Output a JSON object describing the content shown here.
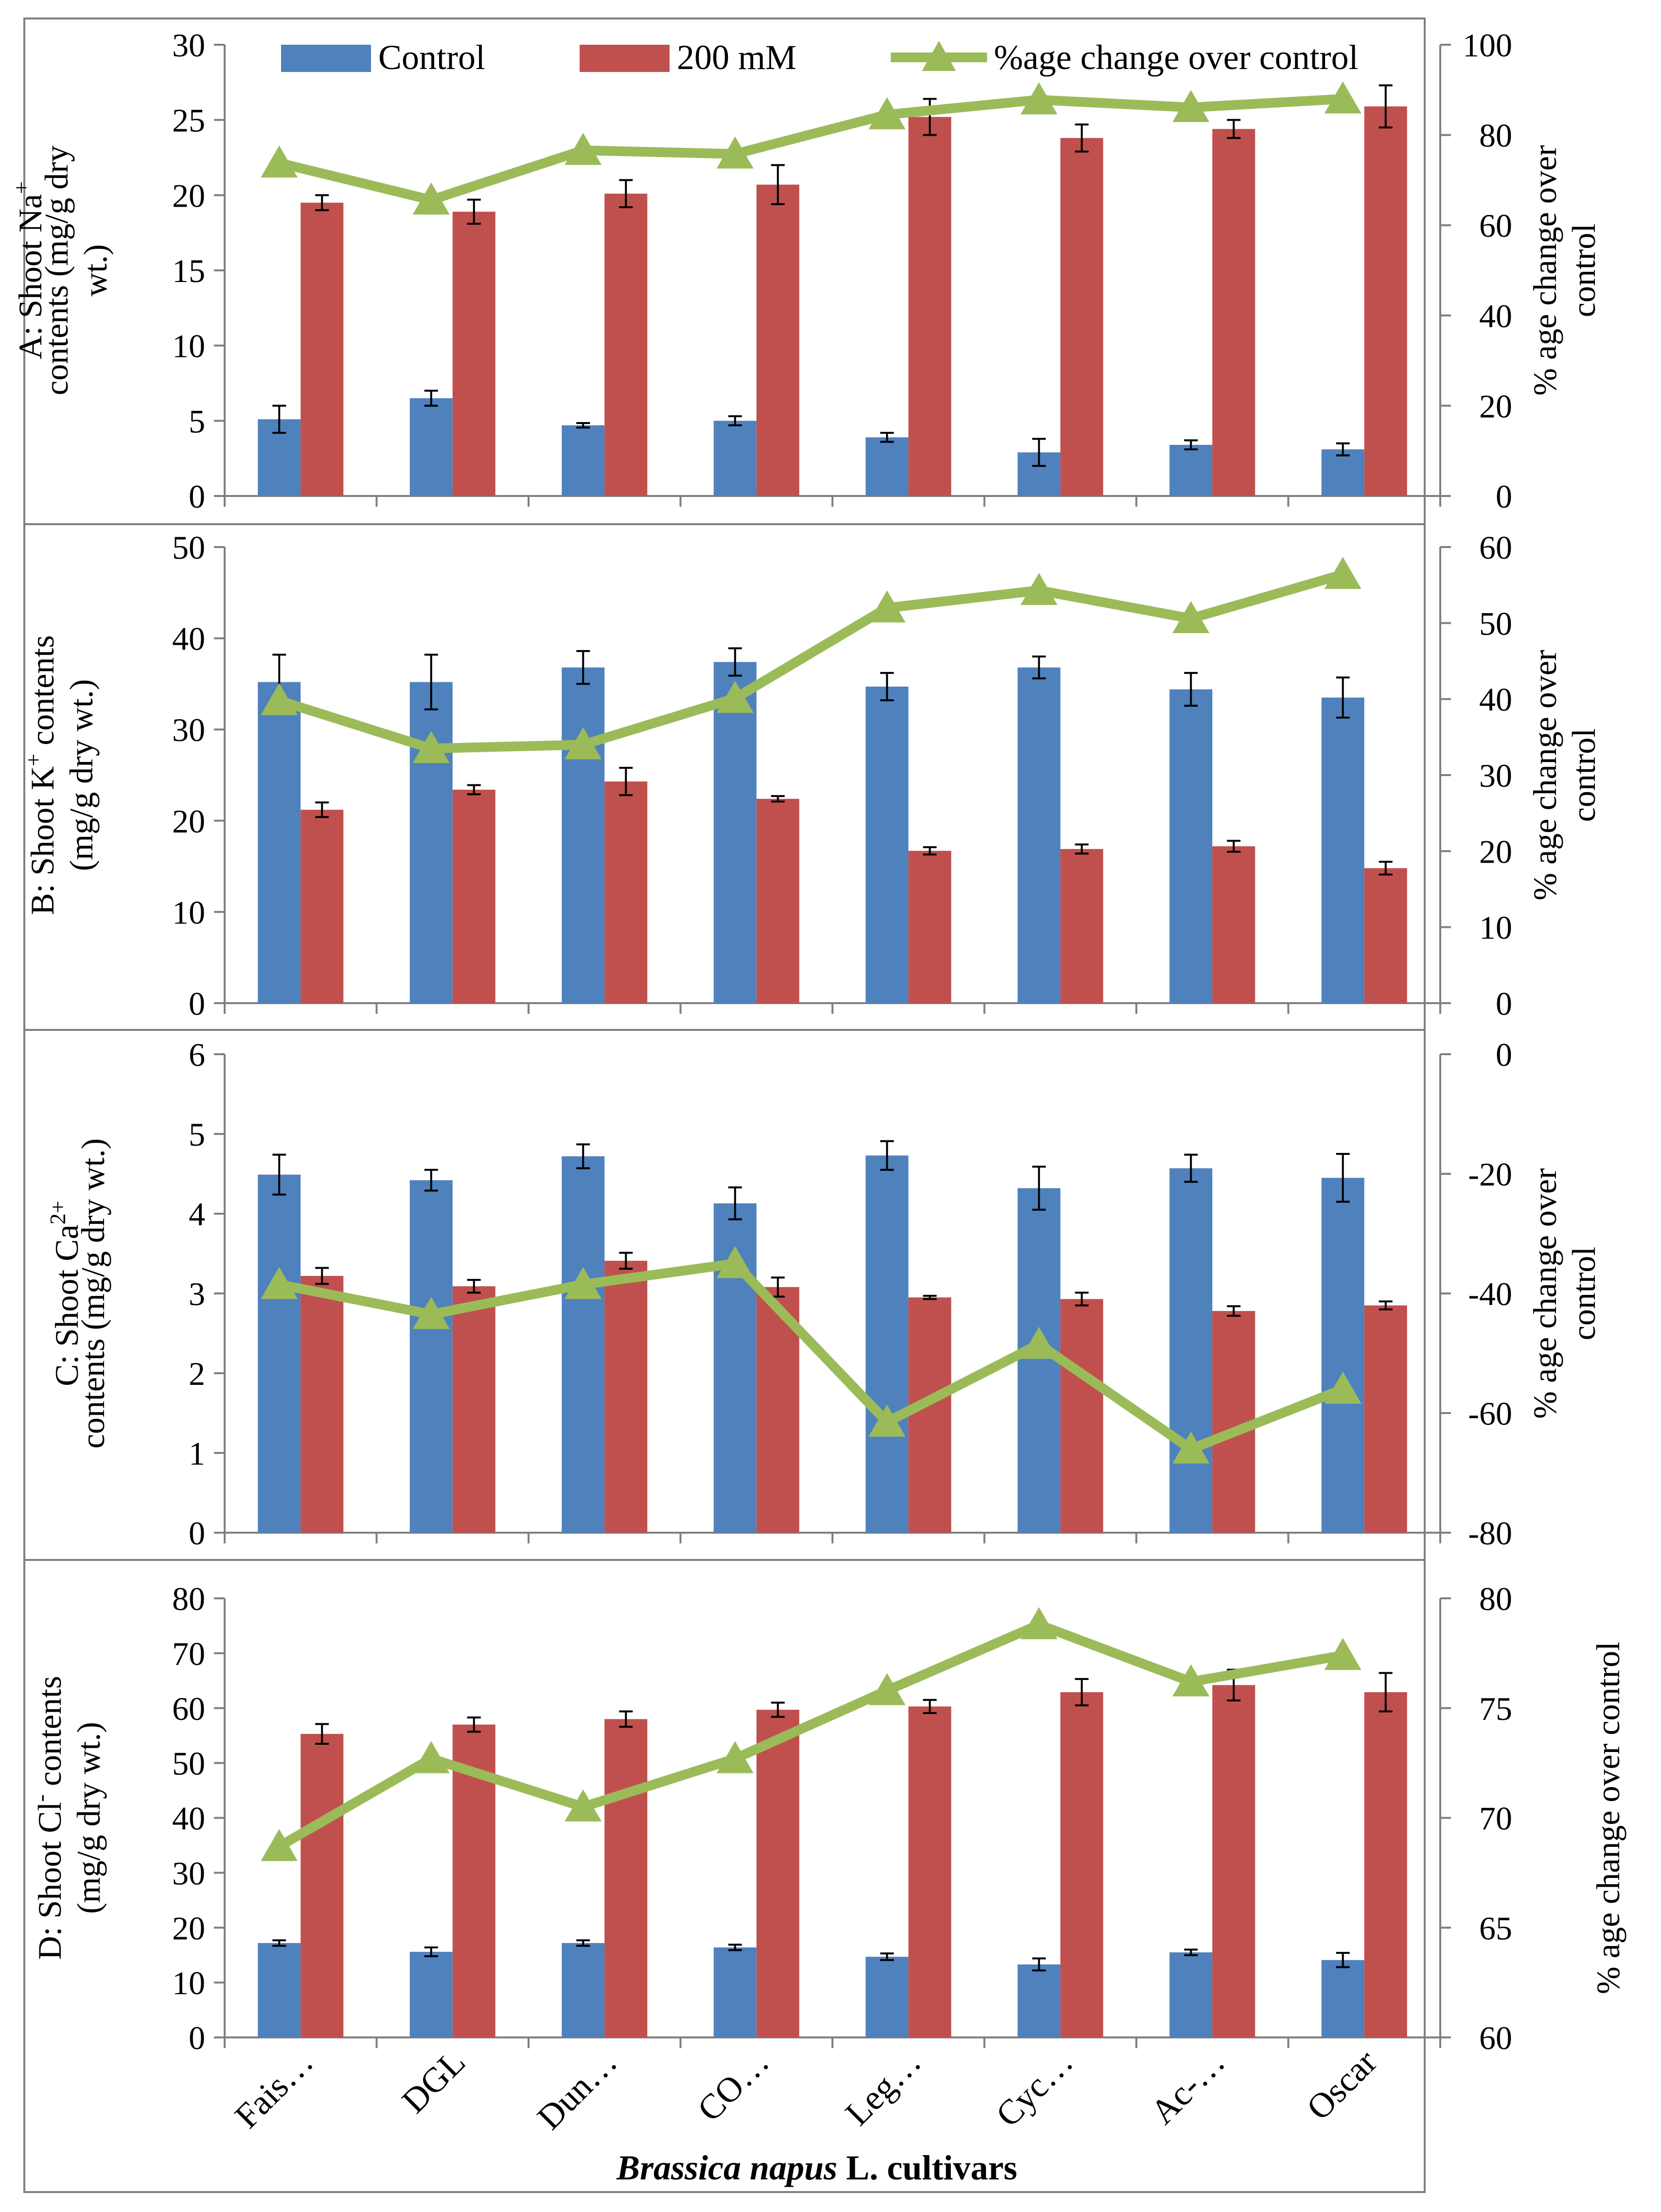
{
  "figure": {
    "legend": {
      "control": "Control",
      "salt": "200 mM",
      "change": "%age change over control"
    },
    "x_title_italic": "Brassica napus",
    "x_title_rest": " L. cultivars",
    "colors": {
      "control": "#4f81bd",
      "salt": "#c0504d",
      "change": "#9bbb59"
    }
  },
  "chart_data": [
    {
      "type": "bar",
      "panel": "A",
      "categories": [
        "Fais…",
        "DGL",
        "Dun…",
        "CO…",
        "Leg…",
        "Cyc…",
        "Ac-…",
        "Oscar"
      ],
      "ylabel_lines": [
        {
          "pre": "A: Shoot Na",
          "sup": "+",
          "post": ""
        },
        {
          "pre": "contents (mg/g dry",
          "sup": "",
          "post": ""
        },
        {
          "pre": "wt.)",
          "sup": "",
          "post": ""
        }
      ],
      "y2label_lines": [
        "% age change over",
        "control"
      ],
      "ylim": [
        0,
        30
      ],
      "yticks": [
        0,
        5,
        10,
        15,
        20,
        25,
        30
      ],
      "y2lim": [
        0,
        100
      ],
      "y2ticks": [
        0,
        20,
        40,
        60,
        80,
        100
      ],
      "series": [
        {
          "name": "Control",
          "values": [
            5.1,
            6.5,
            4.7,
            5.0,
            3.9,
            2.9,
            3.4,
            3.1
          ],
          "errors": [
            0.9,
            0.5,
            0.15,
            0.3,
            0.3,
            0.9,
            0.3,
            0.4
          ]
        },
        {
          "name": "200 mM",
          "values": [
            19.5,
            18.9,
            20.1,
            20.7,
            25.2,
            23.8,
            24.4,
            25.9
          ],
          "errors": [
            0.5,
            0.8,
            0.9,
            1.3,
            1.2,
            0.9,
            0.6,
            1.4
          ]
        },
        {
          "name": "%age change over control",
          "axis": "right",
          "values": [
            73.8,
            65.6,
            76.6,
            75.8,
            84.5,
            87.8,
            86.1,
            88.0
          ]
        }
      ]
    },
    {
      "type": "bar",
      "panel": "B",
      "categories": [
        "Fais…",
        "DGL",
        "Dun…",
        "CO…",
        "Leg…",
        "Cyc…",
        "Ac-…",
        "Oscar"
      ],
      "ylabel_lines": [
        {
          "pre": "B: Shoot K",
          "sup": "+",
          "post": " contents"
        },
        {
          "pre": "(mg/g dry wt.)",
          "sup": "",
          "post": ""
        }
      ],
      "y2label_lines": [
        "% age change over",
        "control"
      ],
      "ylim": [
        0,
        50
      ],
      "yticks": [
        0,
        10,
        20,
        30,
        40,
        50
      ],
      "y2lim": [
        0,
        60
      ],
      "y2ticks": [
        0,
        10,
        20,
        30,
        40,
        50,
        60
      ],
      "series": [
        {
          "name": "Control",
          "values": [
            35.2,
            35.2,
            36.8,
            37.4,
            34.7,
            36.8,
            34.4,
            33.5
          ],
          "errors": [
            3.0,
            3.0,
            1.8,
            1.5,
            1.5,
            1.2,
            1.8,
            2.2
          ]
        },
        {
          "name": "200 mM",
          "values": [
            21.2,
            23.4,
            24.3,
            22.4,
            16.7,
            16.9,
            17.2,
            14.8
          ],
          "errors": [
            0.8,
            0.5,
            1.5,
            0.3,
            0.4,
            0.5,
            0.6,
            0.7
          ]
        },
        {
          "name": "%age change over control",
          "axis": "right",
          "values": [
            39.8,
            33.5,
            34.0,
            40.1,
            52.0,
            54.3,
            50.6,
            56.4
          ]
        }
      ]
    },
    {
      "type": "bar",
      "panel": "C",
      "categories": [
        "Fais…",
        "DGL",
        "Dun…",
        "CO…",
        "Leg…",
        "Cyc…",
        "Ac-…",
        "Oscar"
      ],
      "ylabel_lines": [
        {
          "pre": "C: Shoot Ca",
          "sup": "2+",
          "post": ""
        },
        {
          "pre": "contents (mg/g dry wt.)",
          "sup": "",
          "post": ""
        }
      ],
      "y2label_lines": [
        "% age change over",
        "control"
      ],
      "ylim": [
        0,
        6
      ],
      "yticks": [
        0,
        1,
        2,
        3,
        4,
        5,
        6
      ],
      "y2lim": [
        -80,
        0
      ],
      "y2ticks": [
        -80,
        -60,
        -40,
        -20,
        0
      ],
      "series": [
        {
          "name": "Control",
          "values": [
            4.49,
            4.42,
            4.72,
            4.13,
            4.73,
            4.32,
            4.57,
            4.45
          ],
          "errors": [
            0.25,
            0.13,
            0.15,
            0.2,
            0.18,
            0.27,
            0.17,
            0.3
          ]
        },
        {
          "name": "200 mM",
          "values": [
            3.22,
            3.09,
            3.41,
            3.08,
            2.95,
            2.93,
            2.78,
            2.85
          ],
          "errors": [
            0.1,
            0.08,
            0.1,
            0.12,
            0.02,
            0.08,
            0.06,
            0.05
          ]
        },
        {
          "name": "%age change over control",
          "axis": "right",
          "values": [
            -38.5,
            -43.5,
            -38.5,
            -35.0,
            -61.5,
            -48.5,
            -66.0,
            -56.0
          ]
        }
      ]
    },
    {
      "type": "bar",
      "panel": "D",
      "categories": [
        "Fais…",
        "DGL",
        "Dun…",
        "CO…",
        "Leg…",
        "Cyc…",
        "Ac-…",
        "Oscar"
      ],
      "ylabel_lines": [
        {
          "pre": "D: Shoot Cl",
          "sup": "-",
          "post": " contents"
        },
        {
          "pre": "(mg/g dry wt.)",
          "sup": "",
          "post": ""
        }
      ],
      "y2label_lines": [
        "% age change over control"
      ],
      "ylim": [
        0,
        80
      ],
      "yticks": [
        0,
        10,
        20,
        30,
        40,
        50,
        60,
        70,
        80
      ],
      "y2lim": [
        60,
        80
      ],
      "y2ticks": [
        60,
        65,
        70,
        75,
        80
      ],
      "series": [
        {
          "name": "Control",
          "values": [
            17.2,
            15.6,
            17.2,
            16.4,
            14.7,
            13.3,
            15.5,
            14.1
          ],
          "errors": [
            0.5,
            0.8,
            0.5,
            0.5,
            0.6,
            1.1,
            0.5,
            1.3
          ]
        },
        {
          "name": "200 mM",
          "values": [
            55.3,
            57.0,
            58.0,
            59.7,
            60.3,
            62.9,
            64.2,
            62.9
          ],
          "errors": [
            1.8,
            1.3,
            1.4,
            1.3,
            1.2,
            2.4,
            2.8,
            3.5
          ]
        },
        {
          "name": "%age change over control",
          "axis": "right",
          "values": [
            68.7,
            72.7,
            70.5,
            72.7,
            75.8,
            78.8,
            76.2,
            77.4
          ]
        }
      ]
    }
  ]
}
